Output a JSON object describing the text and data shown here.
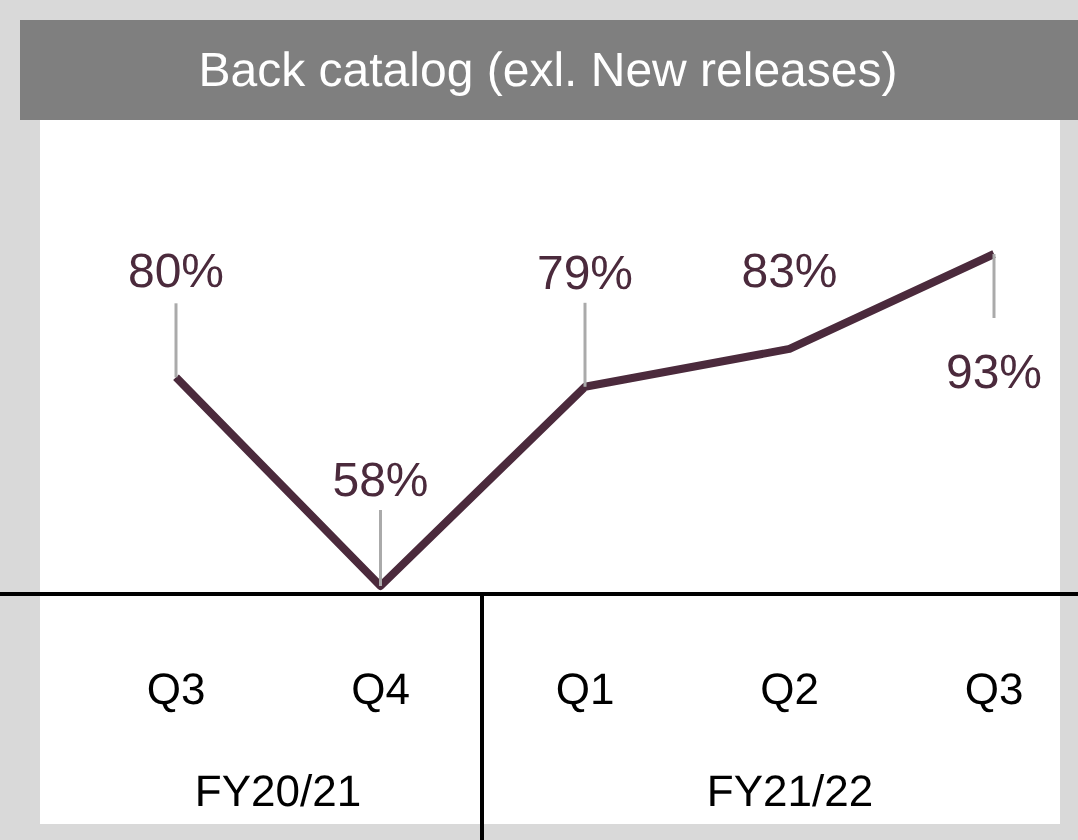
{
  "chart_data": {
    "type": "line",
    "title": "Back catalog (exl. New releases)",
    "categories": [
      "Q3",
      "Q4",
      "Q1",
      "Q2",
      "Q3"
    ],
    "series": [
      {
        "color": "#4b2a3c",
        "values": [
          80,
          58,
          79,
          83,
          93
        ],
        "value_labels": [
          "80%",
          "58%",
          "79%",
          "83%",
          "93%"
        ]
      }
    ],
    "annotations": [
      "FY20/21",
      "FY21/22"
    ],
    "marker": "none",
    "tick_labels": "x"
  }
}
